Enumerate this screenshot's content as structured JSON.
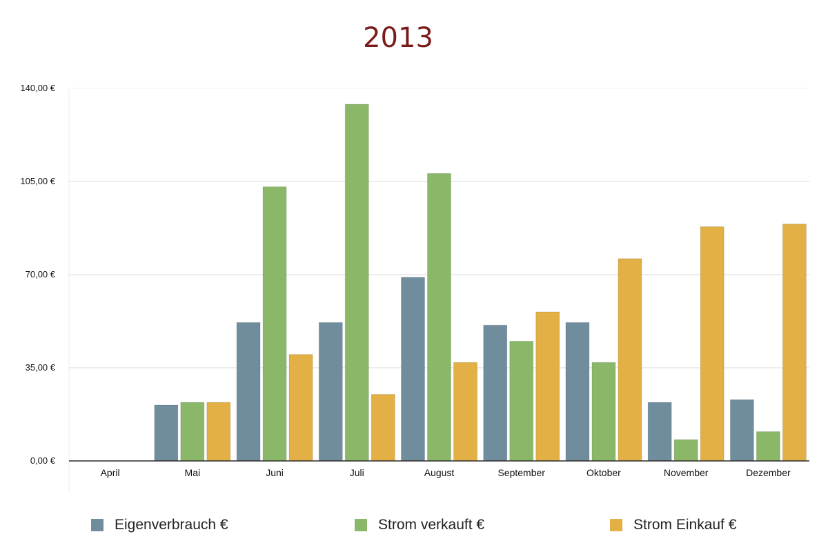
{
  "chart_data": {
    "type": "bar",
    "title": "2013",
    "categories": [
      "April",
      "Mai",
      "Juni",
      "Juli",
      "August",
      "September",
      "Oktober",
      "November",
      "Dezember"
    ],
    "series": [
      {
        "name": "Eigenverbrauch €",
        "color": "#708d9e",
        "values": [
          0,
          21,
          52,
          52,
          69,
          51,
          52,
          22,
          23
        ]
      },
      {
        "name": "Strom verkauft €",
        "color": "#8bb868",
        "values": [
          0,
          22,
          103,
          134,
          108,
          45,
          37,
          8,
          11
        ]
      },
      {
        "name": "Strom Einkauf €",
        "color": "#e2b045",
        "values": [
          0,
          22,
          40,
          25,
          37,
          56,
          76,
          88,
          89
        ]
      }
    ],
    "y_ticks": [
      "0,00 €",
      "35,00 €",
      "70,00 €",
      "105,00 €",
      "140,00 €"
    ],
    "ylim": [
      0,
      140
    ],
    "grid": true,
    "legend_position": "bottom"
  }
}
